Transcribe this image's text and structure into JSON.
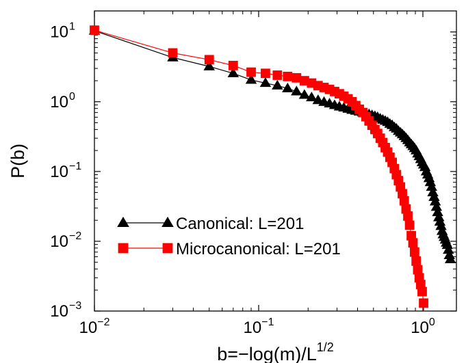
{
  "chart_data": {
    "type": "scatter",
    "title": "",
    "xlabel": "b=−log(m)/L",
    "xlabel_superscript": "1/2",
    "ylabel": "P(b)",
    "xscale": "log",
    "yscale": "log",
    "xlim": [
      0.01,
      1.6
    ],
    "ylim": [
      0.001,
      20
    ],
    "x_ticks": [
      {
        "value": 0.01,
        "base": "10",
        "exp": "−2"
      },
      {
        "value": 0.1,
        "base": "10",
        "exp": "−1"
      },
      {
        "value": 1,
        "base": "10",
        "exp": "0"
      }
    ],
    "y_ticks": [
      {
        "value": 0.001,
        "base": "10",
        "exp": "−3"
      },
      {
        "value": 0.01,
        "base": "10",
        "exp": "−2"
      },
      {
        "value": 0.1,
        "base": "10",
        "exp": "−1"
      },
      {
        "value": 1,
        "base": "10",
        "exp": "0"
      },
      {
        "value": 10,
        "base": "10",
        "exp": "1"
      }
    ],
    "grid": false,
    "legend_position": "bottom-left",
    "series": [
      {
        "name": "Canonical: L=201",
        "color": "#000000",
        "marker": "triangle",
        "x": [
          0.01,
          0.03,
          0.05,
          0.07,
          0.09,
          0.11,
          0.13,
          0.15,
          0.17,
          0.19,
          0.21,
          0.23,
          0.25,
          0.27,
          0.29,
          0.31,
          0.33,
          0.35,
          0.37,
          0.39,
          0.41,
          0.43,
          0.45,
          0.47,
          0.49,
          0.51,
          0.53,
          0.55,
          0.57,
          0.59,
          0.61,
          0.63,
          0.65,
          0.67,
          0.69,
          0.71,
          0.73,
          0.75,
          0.77,
          0.79,
          0.81,
          0.83,
          0.85,
          0.87,
          0.89,
          0.91,
          0.93,
          0.95,
          0.97,
          0.99,
          1.01,
          1.03,
          1.05,
          1.07,
          1.09,
          1.11,
          1.13,
          1.15,
          1.17,
          1.19,
          1.21,
          1.23,
          1.25,
          1.27,
          1.29,
          1.31,
          1.33,
          1.35,
          1.37,
          1.39,
          1.41,
          1.43,
          1.45,
          1.47
        ],
        "y": [
          10.4,
          4.3,
          3.2,
          2.55,
          2.05,
          1.85,
          1.7,
          1.55,
          1.4,
          1.25,
          1.15,
          1.05,
          0.99,
          0.94,
          0.89,
          0.85,
          0.82,
          0.79,
          0.76,
          0.74,
          0.72,
          0.7,
          0.68,
          0.66,
          0.64,
          0.62,
          0.6,
          0.57,
          0.55,
          0.53,
          0.51,
          0.48,
          0.46,
          0.43,
          0.41,
          0.38,
          0.36,
          0.34,
          0.32,
          0.3,
          0.28,
          0.26,
          0.245,
          0.23,
          0.215,
          0.2,
          0.18,
          0.165,
          0.15,
          0.135,
          0.125,
          0.115,
          0.1,
          0.09,
          0.08,
          0.07,
          0.06,
          0.05,
          0.043,
          0.037,
          0.031,
          0.026,
          0.022,
          0.019,
          0.0165,
          0.014,
          0.0125,
          0.0115,
          0.0105,
          0.0095,
          0.0088,
          0.0075,
          0.0063,
          0.0055
        ]
      },
      {
        "name": "Microcanonical: L=201",
        "color": "#ff0000",
        "marker": "square",
        "x": [
          0.01,
          0.03,
          0.05,
          0.07,
          0.09,
          0.11,
          0.13,
          0.15,
          0.17,
          0.19,
          0.21,
          0.23,
          0.25,
          0.27,
          0.29,
          0.31,
          0.33,
          0.35,
          0.37,
          0.39,
          0.41,
          0.43,
          0.45,
          0.47,
          0.49,
          0.51,
          0.53,
          0.55,
          0.57,
          0.59,
          0.61,
          0.63,
          0.65,
          0.67,
          0.69,
          0.71,
          0.73,
          0.75,
          0.77,
          0.79,
          0.81,
          0.83,
          0.85,
          0.87,
          0.89,
          0.91,
          0.93,
          0.95,
          0.97,
          0.99,
          1.01
        ],
        "y": [
          10.6,
          5.0,
          4.0,
          3.3,
          2.65,
          2.55,
          2.4,
          2.3,
          2.2,
          2.0,
          1.85,
          1.7,
          1.6,
          1.5,
          1.4,
          1.3,
          1.2,
          1.1,
          1.0,
          0.88,
          0.78,
          0.7,
          0.61,
          0.53,
          0.46,
          0.4,
          0.35,
          0.3,
          0.26,
          0.22,
          0.19,
          0.16,
          0.135,
          0.11,
          0.09,
          0.074,
          0.06,
          0.048,
          0.038,
          0.029,
          0.023,
          0.017,
          0.012,
          0.0095,
          0.007,
          0.0052,
          0.0039,
          0.003,
          0.0024,
          0.0019,
          0.0013
        ]
      }
    ]
  }
}
